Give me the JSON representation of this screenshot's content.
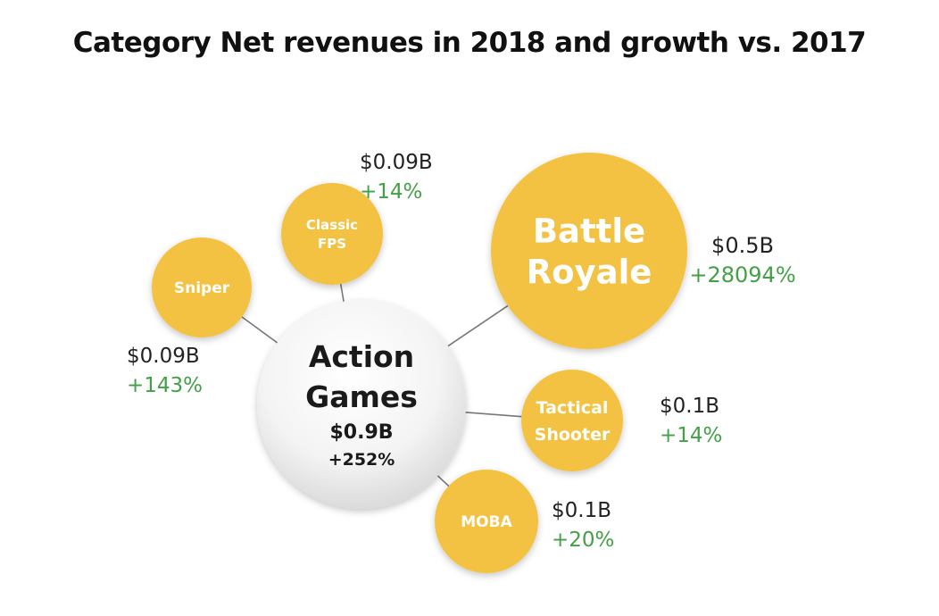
{
  "title": "Category Net revenues in 2018 and growth vs. 2017",
  "colors": {
    "bubble": "#F3C242",
    "center_bubble": "#F2F2F2",
    "connector": "#777777",
    "value_text": "#222222",
    "growth_text": "#43A047",
    "bubble_label": "#FFFFFF"
  },
  "center": {
    "label_line1": "Action",
    "label_line2": "Games",
    "value": "$0.9B",
    "growth": "+252%"
  },
  "categories": [
    {
      "id": "sniper",
      "label_lines": [
        "Sniper"
      ],
      "value": "$0.09B",
      "growth": "+143%",
      "revenue_billion": 0.09
    },
    {
      "id": "classic-fps",
      "label_lines": [
        "Classic",
        "FPS"
      ],
      "value": "$0.09B",
      "growth": "+14%",
      "revenue_billion": 0.09
    },
    {
      "id": "battle-royale",
      "label_lines": [
        "Battle",
        "Royale"
      ],
      "value": "$0.5B",
      "growth": "+28094%",
      "revenue_billion": 0.5
    },
    {
      "id": "tactical-shooter",
      "label_lines": [
        "Tactical",
        "Shooter"
      ],
      "value": "$0.1B",
      "growth": "+14%",
      "revenue_billion": 0.1
    },
    {
      "id": "moba",
      "label_lines": [
        "MOBA"
      ],
      "value": "$0.1B",
      "growth": "+20%",
      "revenue_billion": 0.1
    }
  ]
}
